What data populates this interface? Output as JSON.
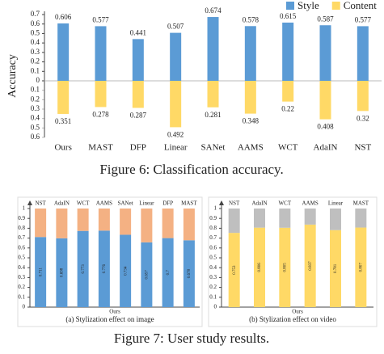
{
  "chart_data": [
    {
      "type": "bar",
      "ylabel": "Accuracy",
      "caption": "Figure 6: Classification accuracy.",
      "categories": [
        "Ours",
        "MAST",
        "DFP",
        "Linear",
        "SANet",
        "AAMS",
        "WCT",
        "AdaIN",
        "NST"
      ],
      "series": [
        {
          "name": "Style",
          "color": "#5b9bd5",
          "values": [
            0.606,
            0.577,
            0.441,
            0.507,
            0.674,
            0.578,
            0.615,
            0.587,
            0.577
          ]
        },
        {
          "name": "Content",
          "color": "#ffd966",
          "axis": "y2",
          "values": [
            0.351,
            0.278,
            0.287,
            0.492,
            0.281,
            0.348,
            0.22,
            0.408,
            0.32
          ]
        }
      ],
      "ylim": [
        0,
        0.7
      ],
      "yticks": [
        0,
        0.1,
        0.2,
        0.3,
        0.4,
        0.5,
        0.6,
        0.7
      ],
      "y2lim": [
        0,
        0.6
      ],
      "y2ticks": [
        0.1,
        0.2,
        0.3,
        0.4,
        0.5,
        0.6
      ],
      "legend": "top-right"
    },
    {
      "type": "bar",
      "stacked": true,
      "xlabel": "Ours",
      "caption": "(a) Stylization effect on image",
      "categories": [
        "NST",
        "AdaIN",
        "WCT",
        "AAMS",
        "SANet",
        "Linear",
        "DFP",
        "MAST"
      ],
      "series": [
        {
          "color": "#5b9bd5",
          "values": [
            0.711,
            0.698,
            0.773,
            0.776,
            0.734,
            0.657,
            0.7,
            0.678
          ],
          "labeled": true
        },
        {
          "color": "#f4b183",
          "values": [
            0.289,
            0.302,
            0.227,
            0.224,
            0.266,
            0.343,
            0.3,
            0.322
          ]
        }
      ],
      "ylim": [
        0,
        1
      ],
      "yticks": [
        0,
        0.1,
        0.2,
        0.3,
        0.4,
        0.5,
        0.6,
        0.7,
        0.8,
        0.9,
        1
      ]
    },
    {
      "type": "bar",
      "stacked": true,
      "xlabel": "Ours",
      "caption": "(b) Stylization effect on video",
      "categories": [
        "NST",
        "AdaIN",
        "WCT",
        "AAMS",
        "Linear",
        "MAST"
      ],
      "series": [
        {
          "color": "#ffd966",
          "values": [
            0.753,
            0.806,
            0.805,
            0.837,
            0.781,
            0.807
          ],
          "labeled": true
        },
        {
          "color": "#bfbfbf",
          "values": [
            0.247,
            0.194,
            0.195,
            0.163,
            0.219,
            0.193
          ]
        }
      ],
      "ylim": [
        0,
        1
      ],
      "yticks": [
        0,
        0.1,
        0.2,
        0.3,
        0.4,
        0.5,
        0.6,
        0.7,
        0.8,
        0.9,
        1
      ]
    }
  ],
  "figure_caption": "Figure 7: User study results."
}
